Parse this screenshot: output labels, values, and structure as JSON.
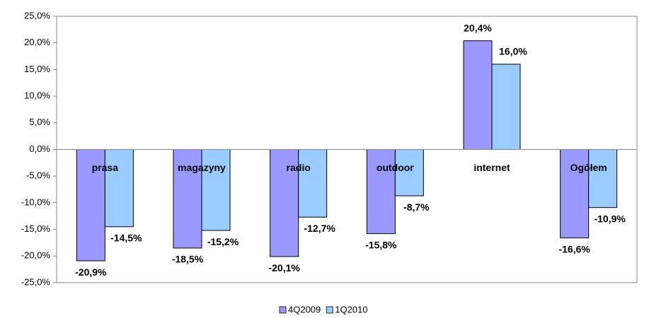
{
  "chart_data": {
    "type": "bar",
    "categories": [
      "prasa",
      "magazyny",
      "radio",
      "outdoor",
      "internet",
      "Ogółem"
    ],
    "series": [
      {
        "name": "4Q2009",
        "color": "#9999ff",
        "values": [
          -20.9,
          -18.5,
          -20.1,
          -15.8,
          20.4,
          -16.6
        ],
        "value_labels": [
          "-20,9%",
          "-18,5%",
          "-20,1%",
          "-15,8%",
          "20,4%",
          "-16,6%"
        ]
      },
      {
        "name": "1Q2010",
        "color": "#99ccff",
        "values": [
          -14.5,
          -15.2,
          -12.7,
          -8.7,
          16.0,
          -10.9
        ],
        "value_labels": [
          "-14,5%",
          "-15,2%",
          "-12,7%",
          "-8,7%",
          "16,0%",
          "-10,9%"
        ]
      }
    ],
    "ylim": [
      -25,
      25
    ],
    "yticks": [
      {
        "value": -25,
        "label": "-25,0%"
      },
      {
        "value": -20,
        "label": "-20,0%"
      },
      {
        "value": -15,
        "label": "-15,0%"
      },
      {
        "value": -10,
        "label": "-10,0%"
      },
      {
        "value": -5,
        "label": "-5,0%"
      },
      {
        "value": 0,
        "label": "0,0%"
      },
      {
        "value": 5,
        "label": "5,0%"
      },
      {
        "value": 10,
        "label": "10,0%"
      },
      {
        "value": 15,
        "label": "15,0%"
      },
      {
        "value": 20,
        "label": "20,0%"
      },
      {
        "value": 25,
        "label": "25,0%"
      }
    ],
    "grid": false,
    "legend": "bottom"
  }
}
